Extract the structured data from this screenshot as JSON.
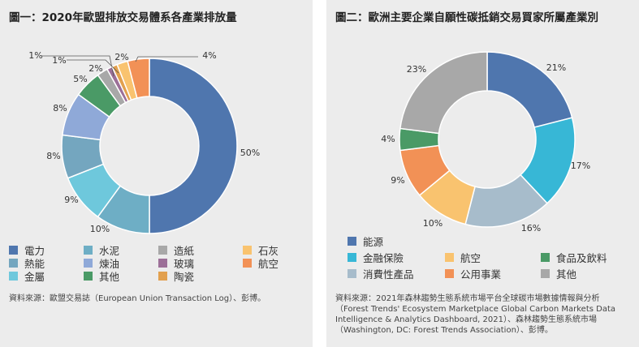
{
  "colors": {
    "panel_bg": "#ececec",
    "c1": "#4f76ae",
    "c2": "#6eaec5",
    "c3": "#a8a8a8",
    "c4": "#f9c36f",
    "c5": "#74a6bf",
    "c6": "#8fa9d8",
    "c7": "#9c6f98",
    "c8": "#f29156",
    "c9": "#6ec8dc",
    "c10": "#4a9a66",
    "c11": "#e2a04e",
    "r1": "#4f76ae",
    "r2": "#37b7d6",
    "r3": "#a7bccb",
    "r4": "#f9c36f",
    "r5": "#f29156",
    "r6": "#4a9a66",
    "r7": "#a8a8a8"
  },
  "chart_data": [
    {
      "type": "pie",
      "title": "圖一：2020年歐盟排放交易體系各產業排放量",
      "slices": [
        {
          "name": "電力",
          "value": 50,
          "label": "50%",
          "color": "#4f76ae"
        },
        {
          "name": "水泥",
          "value": 10,
          "label": "10%",
          "color": "#6eaec5"
        },
        {
          "name": "金屬",
          "value": 9,
          "label": "9%",
          "color": "#6ec8dc"
        },
        {
          "name": "熱能",
          "value": 8,
          "label": "8%",
          "color": "#74a6bf"
        },
        {
          "name": "煉油",
          "value": 8,
          "label": "8%",
          "color": "#8fa9d8"
        },
        {
          "name": "其他",
          "value": 5,
          "label": "5%",
          "color": "#4a9a66"
        },
        {
          "name": "造紙",
          "value": 2,
          "label": "2%",
          "color": "#a8a8a8"
        },
        {
          "name": "玻璃",
          "value": 1,
          "label": "1%",
          "color": "#9c6f98"
        },
        {
          "name": "陶瓷",
          "value": 1,
          "label": "1%",
          "color": "#e2a04e"
        },
        {
          "name": "石灰",
          "value": 2,
          "label": "2%",
          "color": "#f9c36f"
        },
        {
          "name": "航空",
          "value": 4,
          "label": "4%",
          "color": "#f29156"
        }
      ],
      "legend": [
        [
          "電力",
          "水泥",
          "造紙",
          "石灰"
        ],
        [
          "熱能",
          "煉油",
          "玻璃",
          "航空"
        ],
        [
          "金屬",
          "其他",
          "陶瓷"
        ]
      ],
      "source": "資料來源：歐盟交易誌（European Union Transaction Log）、彭博。"
    },
    {
      "type": "pie",
      "title": "圖二：歐洲主要企業自願性碳抵銷交易買家所屬產業別",
      "slices": [
        {
          "name": "能源",
          "value": 21,
          "label": "21%",
          "color": "#4f76ae"
        },
        {
          "name": "金融保險",
          "value": 17,
          "label": "17%",
          "color": "#37b7d6"
        },
        {
          "name": "消費性產品",
          "value": 16,
          "label": "16%",
          "color": "#a7bccb"
        },
        {
          "name": "航空",
          "value": 10,
          "label": "10%",
          "color": "#f9c36f"
        },
        {
          "name": "公用事業",
          "value": 9,
          "label": "9%",
          "color": "#f29156"
        },
        {
          "name": "食品及飲料",
          "value": 4,
          "label": "4%",
          "color": "#4a9a66"
        },
        {
          "name": "其他",
          "value": 23,
          "label": "23%",
          "color": "#a8a8a8"
        }
      ],
      "legend": [
        [
          "能源"
        ],
        [
          "金融保險",
          "航空",
          "食品及飲料"
        ],
        [
          "消費性產品",
          "公用事業",
          "其他"
        ]
      ],
      "source": "資料來源：2021年森林趨勢生態系統市場平台全球碳市場數據情報與分析\n（Forest Trends' Ecosystem Marketplace Global Carbon Markets Data\nIntelligence & Analytics Dashboard, 2021）、森林趨勢生態系統市場\n（Washington, DC: Forest Trends Association）、彭博。"
    }
  ]
}
